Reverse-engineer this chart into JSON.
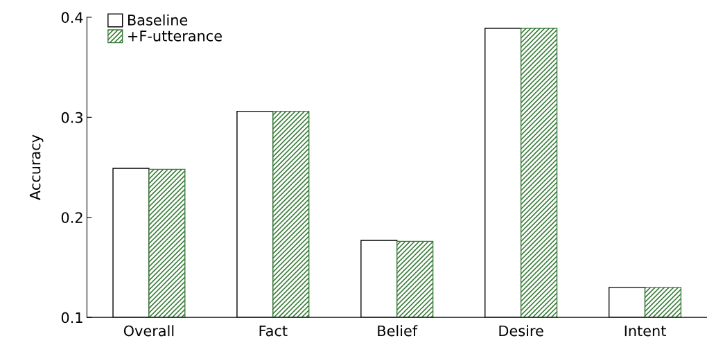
{
  "chart_data": {
    "type": "bar",
    "ylabel": "Accuracy",
    "categories": [
      "Overall",
      "Fact",
      "Belief",
      "Desire",
      "Intent"
    ],
    "series": [
      {
        "name": "Baseline",
        "color": "#ffffff",
        "values": [
          0.249,
          0.306,
          0.177,
          0.389,
          0.13
        ]
      },
      {
        "name": "+F-utterance",
        "color": "#3a7d3a",
        "values": [
          0.248,
          0.306,
          0.176,
          0.389,
          0.13
        ]
      }
    ],
    "ylim": [
      0.1,
      0.4
    ],
    "yticks": [
      0.1,
      0.2,
      0.3,
      0.4
    ],
    "grid": false,
    "legend": "top left"
  }
}
